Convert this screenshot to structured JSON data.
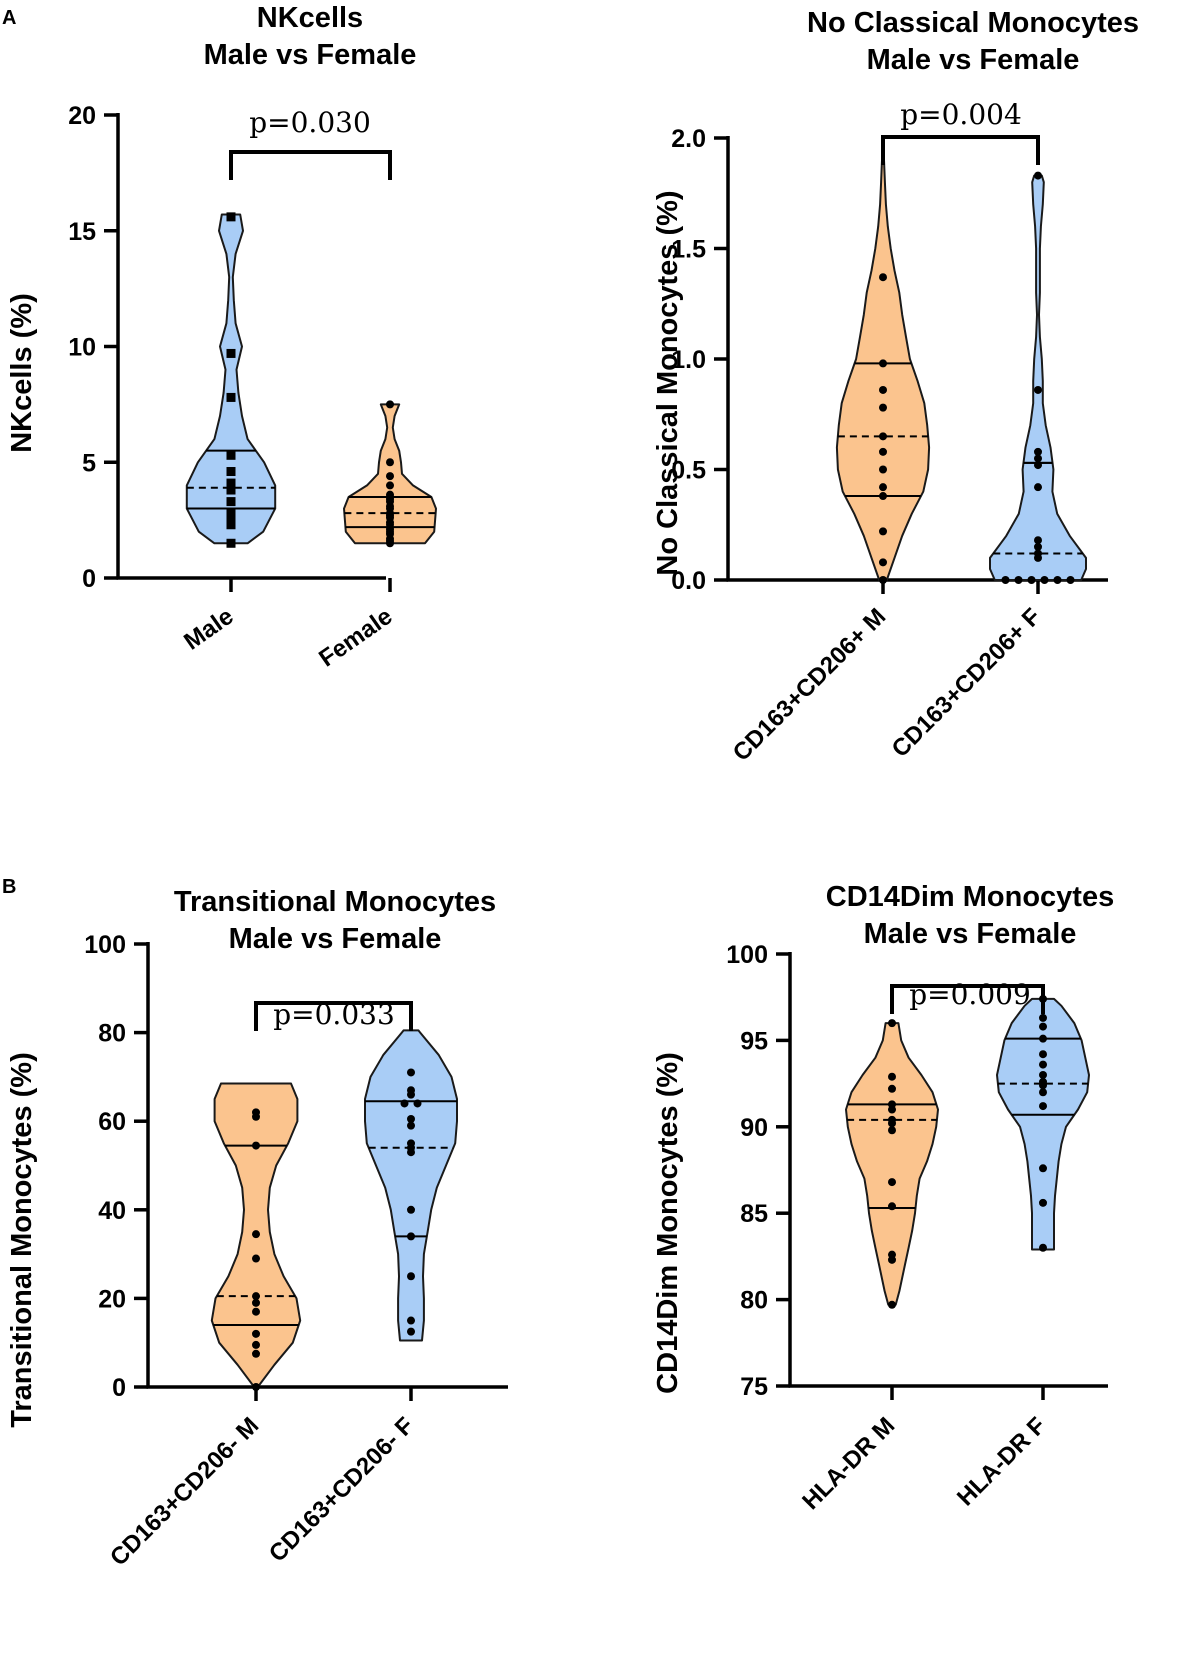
{
  "colors": {
    "male": "#fbc48e",
    "female": "#a9cdf6",
    "outline": "#1a1a1a",
    "point": "#000000"
  },
  "panel_letters": [
    "A",
    "B"
  ],
  "chart_data": [
    {
      "type": "violin",
      "panel": "A",
      "title_lines": [
        "NKcells",
        "Male vs Female"
      ],
      "ylabel": "NKcells (%)",
      "ylim": [
        0,
        20
      ],
      "yticks": [
        0,
        5,
        10,
        15,
        20
      ],
      "ytick_labels": [
        "0",
        "5",
        "10",
        "15",
        "20"
      ],
      "p_value": "p=0.030",
      "groups": [
        {
          "name": "Male",
          "color": "#a9cdf6",
          "marker": "square",
          "min": 1.5,
          "max": 15.7,
          "median": 3.0,
          "q3": 5.5,
          "mean": 3.9,
          "points": [
            15.6,
            9.7,
            7.8,
            5.3,
            4.6,
            4.1,
            3.8,
            3.3,
            2.8,
            2.6,
            2.3,
            1.5
          ],
          "profile": [
            [
              1.5,
              0.18
            ],
            [
              2.0,
              0.35
            ],
            [
              3.0,
              0.48
            ],
            [
              4.0,
              0.48
            ],
            [
              5.0,
              0.36
            ],
            [
              6.0,
              0.18
            ],
            [
              7.0,
              0.12
            ],
            [
              8.0,
              0.08
            ],
            [
              9.0,
              0.06
            ],
            [
              10.0,
              0.12
            ],
            [
              11.0,
              0.05
            ],
            [
              12.0,
              0.03
            ],
            [
              13.0,
              0.02
            ],
            [
              14.0,
              0.05
            ],
            [
              15.0,
              0.13
            ],
            [
              15.7,
              0.1
            ]
          ]
        },
        {
          "name": "Female",
          "color": "#fbc48e",
          "marker": "circle",
          "min": 1.5,
          "max": 7.5,
          "median": 2.2,
          "q3": 3.5,
          "mean": 2.8,
          "points": [
            7.5,
            5.0,
            4.4,
            4.0,
            3.6,
            3.5,
            3.4,
            3.3,
            3.1,
            3.0,
            2.8,
            2.7,
            2.6,
            2.4,
            2.3,
            2.1,
            2.0,
            1.9,
            1.7,
            1.6,
            1.5
          ],
          "profile": [
            [
              1.5,
              0.38
            ],
            [
              2.0,
              0.48
            ],
            [
              3.0,
              0.5
            ],
            [
              3.5,
              0.45
            ],
            [
              4.0,
              0.25
            ],
            [
              4.5,
              0.13
            ],
            [
              5.0,
              0.12
            ],
            [
              5.5,
              0.1
            ],
            [
              6.0,
              0.05
            ],
            [
              6.5,
              0.03
            ],
            [
              7.0,
              0.05
            ],
            [
              7.5,
              0.1
            ]
          ]
        }
      ]
    },
    {
      "type": "violin",
      "panel": "A",
      "title_lines": [
        "No Classical Monocytes",
        "Male vs Female"
      ],
      "ylabel": "No Classical Monocytes (%)",
      "ylim": [
        0,
        2.0
      ],
      "yticks": [
        0,
        0.5,
        1.0,
        1.5,
        2.0
      ],
      "ytick_labels": [
        "0.0",
        "0.5",
        "1.0",
        "1.5",
        "2.0"
      ],
      "p_value": "p=0.004",
      "groups": [
        {
          "name": "CD163+CD206+ M",
          "color": "#fbc48e",
          "marker": "circle",
          "min": 0.0,
          "max": 2.0,
          "median": 0.38,
          "q3": 0.98,
          "mean": 0.65,
          "points": [
            1.37,
            0.98,
            0.86,
            0.78,
            0.65,
            0.58,
            0.5,
            0.42,
            0.38,
            0.22,
            0.08,
            0.0
          ],
          "profile": [
            [
              0.0,
              0.04
            ],
            [
              0.1,
              0.12
            ],
            [
              0.2,
              0.2
            ],
            [
              0.3,
              0.3
            ],
            [
              0.4,
              0.42
            ],
            [
              0.5,
              0.47
            ],
            [
              0.6,
              0.48
            ],
            [
              0.7,
              0.46
            ],
            [
              0.8,
              0.43
            ],
            [
              0.9,
              0.36
            ],
            [
              1.0,
              0.28
            ],
            [
              1.1,
              0.24
            ],
            [
              1.2,
              0.2
            ],
            [
              1.3,
              0.17
            ],
            [
              1.4,
              0.12
            ],
            [
              1.5,
              0.08
            ],
            [
              1.6,
              0.05
            ],
            [
              1.7,
              0.03
            ],
            [
              1.8,
              0.02
            ],
            [
              1.9,
              0.01
            ],
            [
              2.0,
              0.0
            ]
          ]
        },
        {
          "name": "CD163+CD206+ F",
          "color": "#a9cdf6",
          "marker": "circle",
          "min": 0.0,
          "max": 1.83,
          "median": 0.53,
          "q3": 0.53,
          "mean": 0.12,
          "points": [
            1.83,
            0.86,
            0.58,
            0.55,
            0.52,
            0.42,
            0.18,
            0.15,
            0.12,
            0.1,
            0.0,
            0.0,
            0.0,
            0.0,
            0.0,
            0.0
          ],
          "profile": [
            [
              0.0,
              0.45
            ],
            [
              0.05,
              0.5
            ],
            [
              0.1,
              0.5
            ],
            [
              0.2,
              0.33
            ],
            [
              0.3,
              0.2
            ],
            [
              0.4,
              0.15
            ],
            [
              0.5,
              0.16
            ],
            [
              0.6,
              0.13
            ],
            [
              0.7,
              0.08
            ],
            [
              0.8,
              0.05
            ],
            [
              0.9,
              0.05
            ],
            [
              1.0,
              0.04
            ],
            [
              1.1,
              0.02
            ],
            [
              1.2,
              0.01
            ],
            [
              1.3,
              0.02
            ],
            [
              1.4,
              0.02
            ],
            [
              1.5,
              0.02
            ],
            [
              1.6,
              0.03
            ],
            [
              1.7,
              0.05
            ],
            [
              1.8,
              0.06
            ],
            [
              1.83,
              0.04
            ]
          ]
        }
      ]
    },
    {
      "type": "violin",
      "panel": "B",
      "title_lines": [
        "Transitional Monocytes",
        "Male vs Female"
      ],
      "ylabel": "Transitional Monocytes (%)",
      "ylim": [
        0,
        100
      ],
      "yticks": [
        0,
        20,
        40,
        60,
        80,
        100
      ],
      "ytick_labels": [
        "0",
        "20",
        "40",
        "60",
        "80",
        "100"
      ],
      "p_value": "p=0.033",
      "groups": [
        {
          "name": "CD163+CD206- M",
          "color": "#fbc48e",
          "marker": "circle",
          "min": 0.0,
          "max": 68.5,
          "median": 14.0,
          "q3": 54.5,
          "mean": 20.5,
          "points": [
            62.0,
            61.0,
            54.5,
            34.5,
            29.0,
            20.5,
            19.0,
            17.0,
            12.0,
            9.5,
            7.5,
            0.0
          ],
          "profile": [
            [
              0.0,
              0.02
            ],
            [
              5.0,
              0.2
            ],
            [
              10.0,
              0.4
            ],
            [
              15.0,
              0.48
            ],
            [
              20.0,
              0.44
            ],
            [
              25.0,
              0.3
            ],
            [
              30.0,
              0.2
            ],
            [
              35.0,
              0.15
            ],
            [
              40.0,
              0.13
            ],
            [
              45.0,
              0.15
            ],
            [
              50.0,
              0.22
            ],
            [
              55.0,
              0.35
            ],
            [
              60.0,
              0.45
            ],
            [
              65.0,
              0.45
            ],
            [
              68.5,
              0.38
            ]
          ]
        },
        {
          "name": "CD163+CD206- F",
          "color": "#a9cdf6",
          "marker": "circle",
          "min": 10.5,
          "max": 80.5,
          "median": 64.5,
          "q3": 34.0,
          "mean": 54.0,
          "points": [
            71.0,
            67.0,
            66.0,
            64.0,
            64.0,
            60.5,
            59.0,
            55.0,
            54.0,
            53.0,
            40.0,
            34.0,
            25.0,
            15.0,
            12.5
          ],
          "profile": [
            [
              10.5,
              0.12
            ],
            [
              15.0,
              0.14
            ],
            [
              20.0,
              0.14
            ],
            [
              25.0,
              0.13
            ],
            [
              30.0,
              0.14
            ],
            [
              35.0,
              0.18
            ],
            [
              40.0,
              0.22
            ],
            [
              45.0,
              0.28
            ],
            [
              50.0,
              0.38
            ],
            [
              55.0,
              0.48
            ],
            [
              60.0,
              0.5
            ],
            [
              65.0,
              0.5
            ],
            [
              70.0,
              0.44
            ],
            [
              75.0,
              0.3
            ],
            [
              80.0,
              0.1
            ],
            [
              80.5,
              0.08
            ]
          ]
        }
      ]
    },
    {
      "type": "violin",
      "panel": "B",
      "title_lines": [
        "CD14Dim Monocytes",
        "Male vs Female"
      ],
      "ylabel": "CD14Dim Monocytes (%)",
      "ylim": [
        75,
        100
      ],
      "yticks": [
        75,
        80,
        85,
        90,
        95,
        100
      ],
      "ytick_labels": [
        "75",
        "80",
        "85",
        "90",
        "95",
        "100"
      ],
      "p_value": "p=0.009",
      "groups": [
        {
          "name": "HLA-DR M",
          "color": "#fbc48e",
          "marker": "circle",
          "min": 79.7,
          "max": 96.0,
          "median": 91.3,
          "q3": 85.3,
          "mean": 90.4,
          "points": [
            96.0,
            92.9,
            92.2,
            91.3,
            91.0,
            90.4,
            90.2,
            89.8,
            86.8,
            85.4,
            82.6,
            82.3,
            79.7
          ],
          "profile": [
            [
              79.7,
              0.04
            ],
            [
              80.5,
              0.08
            ],
            [
              82.0,
              0.14
            ],
            [
              83.0,
              0.18
            ],
            [
              84.0,
              0.22
            ],
            [
              85.0,
              0.25
            ],
            [
              86.0,
              0.27
            ],
            [
              87.0,
              0.3
            ],
            [
              88.0,
              0.38
            ],
            [
              89.0,
              0.44
            ],
            [
              90.0,
              0.48
            ],
            [
              91.0,
              0.5
            ],
            [
              92.0,
              0.44
            ],
            [
              93.0,
              0.32
            ],
            [
              94.0,
              0.18
            ],
            [
              95.0,
              0.1
            ],
            [
              96.0,
              0.07
            ]
          ]
        },
        {
          "name": "HLA-DR F",
          "color": "#a9cdf6",
          "marker": "circle",
          "min": 82.9,
          "max": 97.4,
          "median": 95.1,
          "q3": 90.7,
          "mean": 92.5,
          "points": [
            97.4,
            96.3,
            95.8,
            95.1,
            94.2,
            93.6,
            93.0,
            92.6,
            92.4,
            92.0,
            91.2,
            87.6,
            85.6,
            83.0
          ],
          "profile": [
            [
              82.9,
              0.12
            ],
            [
              84.0,
              0.12
            ],
            [
              85.0,
              0.12
            ],
            [
              86.0,
              0.13
            ],
            [
              87.0,
              0.15
            ],
            [
              88.0,
              0.17
            ],
            [
              89.0,
              0.2
            ],
            [
              90.0,
              0.25
            ],
            [
              91.0,
              0.38
            ],
            [
              92.0,
              0.48
            ],
            [
              93.0,
              0.5
            ],
            [
              94.0,
              0.46
            ],
            [
              95.0,
              0.42
            ],
            [
              96.0,
              0.34
            ],
            [
              97.0,
              0.2
            ],
            [
              97.4,
              0.12
            ]
          ]
        }
      ]
    }
  ]
}
